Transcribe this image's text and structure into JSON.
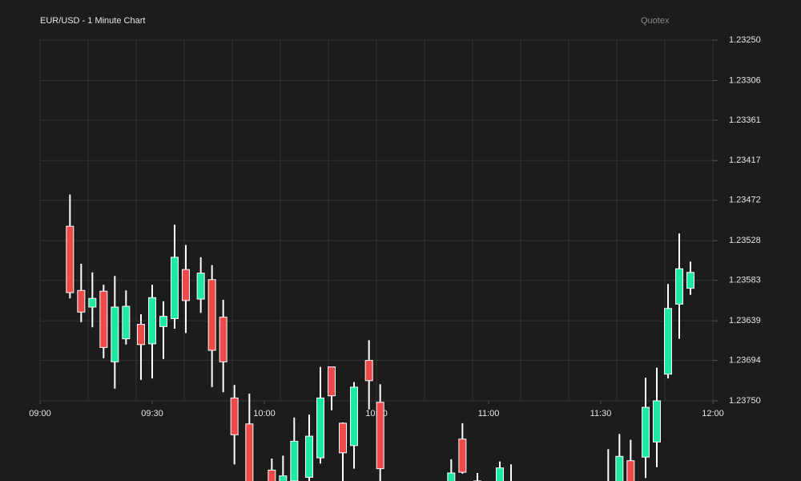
{
  "chart_data": {
    "type": "candlestick",
    "title": "EUR/USD - 1 Minute Chart",
    "brand": "Quotex",
    "up_color": "#1de9a0",
    "down_color": "#ee4a4a",
    "wick_color": "#ffffff",
    "grid": true,
    "xlim": [
      "09:00",
      "12:00"
    ],
    "xticks": [
      "09:00",
      "09:30",
      "10:00",
      "10:30",
      "11:00",
      "11:30",
      "12:00"
    ],
    "ylim": [
      1.2375,
      1.2325
    ],
    "yticks": [
      {
        "value": 1.2325,
        "label": "1.23250"
      },
      1.23306,
      1.23361,
      1.23417,
      1.23472,
      1.23528,
      1.23583,
      1.23639,
      1.23694,
      {
        "value": 1.2375,
        "label": "1.23750"
      }
    ],
    "x": [
      "09:08",
      "09:11",
      "09:14",
      "09:17",
      "09:20",
      "09:23",
      "09:27",
      "09:30",
      "09:33",
      "09:36",
      "09:39",
      "09:43",
      "09:46",
      "09:49",
      "09:52",
      "09:56",
      "10:02",
      "10:05",
      "10:08",
      "10:12",
      "10:15",
      "10:18",
      "10:21",
      "10:24",
      "10:28",
      "10:31",
      "10:50",
      "10:53",
      "10:57",
      "11:03",
      "11:06",
      "11:32",
      "11:35",
      "11:38",
      "11:42",
      "11:45",
      "11:48",
      "11:51",
      "11:54"
    ],
    "open": [
      1.236,
      1.23627,
      1.23608,
      1.23676,
      1.2362,
      1.23619,
      1.23672,
      1.23607,
      1.23633,
      1.23551,
      1.23611,
      1.23573,
      1.2368,
      1.23696,
      1.23797,
      1.23872,
      1.23872,
      1.23854,
      1.23806,
      1.23799,
      1.23746,
      1.23743,
      1.23822,
      1.23731,
      1.23722,
      1.23844,
      1.2385,
      1.23849,
      1.23861,
      1.23843,
      1.23867,
      1.23867,
      1.23827,
      1.23872,
      1.23759,
      1.2375,
      1.23622,
      1.23567,
      1.23572
    ],
    "high": [
      1.23608,
      1.23641,
      1.23648,
      1.23691,
      1.23733,
      1.23672,
      1.23721,
      1.23719,
      1.23692,
      1.2365,
      1.23656,
      1.23628,
      1.23731,
      1.23738,
      1.23838,
      1.23872,
      1.23872,
      1.23872,
      1.23872,
      1.23872,
      1.23837,
      1.23763,
      1.23872,
      1.23844,
      1.23762,
      1.23872,
      1.23872,
      1.23851,
      1.23872,
      1.23872,
      1.23872,
      1.23872,
      1.23872,
      1.23872,
      1.23857,
      1.23842,
      1.23719,
      1.23664,
      1.23603
    ],
    "low": [
      1.23464,
      1.2356,
      1.23572,
      1.23589,
      1.23577,
      1.23597,
      1.2363,
      1.23589,
      1.23612,
      1.23506,
      1.23534,
      1.23551,
      1.23562,
      1.2361,
      1.23728,
      1.2374,
      1.2383,
      1.23826,
      1.23773,
      1.23769,
      1.23703,
      1.23703,
      1.2378,
      1.23724,
      1.23666,
      1.23727,
      1.23831,
      1.23781,
      1.2385,
      1.23834,
      1.23838,
      1.23817,
      1.23796,
      1.23804,
      1.23718,
      1.23704,
      1.23588,
      1.23518,
      1.23557
    ],
    "close": [
      1.23508,
      1.23597,
      1.2362,
      1.23598,
      1.23696,
      1.23664,
      1.23644,
      1.23671,
      1.23647,
      1.23636,
      1.23568,
      1.23609,
      1.23582,
      1.23634,
      1.23746,
      1.23782,
      1.23846,
      1.23872,
      1.23861,
      1.23856,
      1.23829,
      1.23703,
      1.23781,
      1.23812,
      1.23694,
      1.23752,
      1.23872,
      1.23803,
      1.23872,
      1.23872,
      1.23872,
      1.23872,
      1.23872,
      1.23833,
      1.23828,
      1.23807,
      1.23713,
      1.23616,
      1.23594
    ]
  }
}
